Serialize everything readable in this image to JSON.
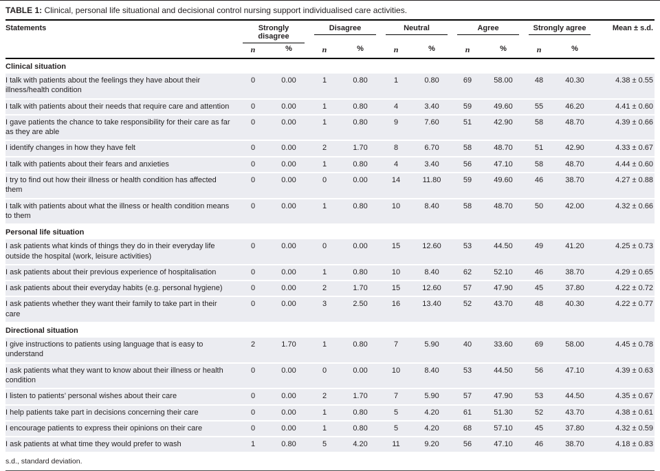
{
  "caption": {
    "label": "TABLE 1:",
    "text": " Clinical, personal life situational and decisional control nursing support individualised care activities."
  },
  "headers": {
    "statements": "Statements",
    "groups": [
      "Strongly disagree",
      "Disagree",
      "Neutral",
      "Agree",
      "Strongly agree"
    ],
    "sub_n": "n",
    "sub_pct": "%",
    "mean": "Mean ± s.d."
  },
  "sections": [
    {
      "title": "Clinical situation",
      "rows": [
        {
          "statement": "I talk with patients about the feelings they have about their illness/health condition",
          "cells": [
            "0",
            "0.00",
            "1",
            "0.80",
            "1",
            "0.80",
            "69",
            "58.00",
            "48",
            "40.30"
          ],
          "mean": "4.38 ± 0.55"
        },
        {
          "statement": "I talk with patients about their needs that require care and attention",
          "cells": [
            "0",
            "0.00",
            "1",
            "0.80",
            "4",
            "3.40",
            "59",
            "49.60",
            "55",
            "46.20"
          ],
          "mean": "4.41 ± 0.60"
        },
        {
          "statement": "I gave patients the chance to take responsibility for their care as far as they are able",
          "cells": [
            "0",
            "0.00",
            "1",
            "0.80",
            "9",
            "7.60",
            "51",
            "42.90",
            "58",
            "48.70"
          ],
          "mean": "4.39 ± 0.66"
        },
        {
          "statement": "I identify changes in how they have felt",
          "cells": [
            "0",
            "0.00",
            "2",
            "1.70",
            "8",
            "6.70",
            "58",
            "48.70",
            "51",
            "42.90"
          ],
          "mean": "4.33 ± 0.67"
        },
        {
          "statement": "I talk with patients about their fears and anxieties",
          "cells": [
            "0",
            "0.00",
            "1",
            "0.80",
            "4",
            "3.40",
            "56",
            "47.10",
            "58",
            "48.70"
          ],
          "mean": "4.44 ± 0.60"
        },
        {
          "statement": "I try to find out how their illness or health condition has affected them",
          "cells": [
            "0",
            "0.00",
            "0",
            "0.00",
            "14",
            "11.80",
            "59",
            "49.60",
            "46",
            "38.70"
          ],
          "mean": "4.27 ± 0.88"
        },
        {
          "statement": "I talk with patients about what the illness or health condition means to them",
          "cells": [
            "0",
            "0.00",
            "1",
            "0.80",
            "10",
            "8.40",
            "58",
            "48.70",
            "50",
            "42.00"
          ],
          "mean": "4.32 ± 0.66"
        }
      ]
    },
    {
      "title": "Personal life situation",
      "rows": [
        {
          "statement": "I ask patients what kinds of things they do in their everyday life outside the hospital (work, leisure activities)",
          "cells": [
            "0",
            "0.00",
            "0",
            "0.00",
            "15",
            "12.60",
            "53",
            "44.50",
            "49",
            "41.20"
          ],
          "mean": "4.25 ± 0.73"
        },
        {
          "statement": "I ask patients about their previous experience of hospitalisation",
          "cells": [
            "0",
            "0.00",
            "1",
            "0.80",
            "10",
            "8.40",
            "62",
            "52.10",
            "46",
            "38.70"
          ],
          "mean": "4.29 ± 0.65"
        },
        {
          "statement": "I ask patients about their everyday habits (e.g. personal hygiene)",
          "cells": [
            "0",
            "0.00",
            "2",
            "1.70",
            "15",
            "12.60",
            "57",
            "47.90",
            "45",
            "37.80"
          ],
          "mean": "4.22 ± 0.72"
        },
        {
          "statement": "I ask patients whether they want their family to take part in their care",
          "cells": [
            "0",
            "0.00",
            "3",
            "2.50",
            "16",
            "13.40",
            "52",
            "43.70",
            "48",
            "40.30"
          ],
          "mean": "4.22 ± 0.77"
        }
      ]
    },
    {
      "title": "Directional situation",
      "rows": [
        {
          "statement": "I give instructions to patients using language that is easy to understand",
          "cells": [
            "2",
            "1.70",
            "1",
            "0.80",
            "7",
            "5.90",
            "40",
            "33.60",
            "69",
            "58.00"
          ],
          "mean": "4.45 ± 0.78"
        },
        {
          "statement": "I ask patients what they want to know about their illness or health condition",
          "cells": [
            "0",
            "0.00",
            "0",
            "0.00",
            "10",
            "8.40",
            "53",
            "44.50",
            "56",
            "47.10"
          ],
          "mean": "4.39 ± 0.63"
        },
        {
          "statement": "I listen to patients’ personal wishes about their care",
          "cells": [
            "0",
            "0.00",
            "2",
            "1.70",
            "7",
            "5.90",
            "57",
            "47.90",
            "53",
            "44.50"
          ],
          "mean": "4.35 ± 0.67"
        },
        {
          "statement": "I help patients take part in decisions concerning their care",
          "cells": [
            "0",
            "0.00",
            "1",
            "0.80",
            "5",
            "4.20",
            "61",
            "51.30",
            "52",
            "43.70"
          ],
          "mean": "4.38 ± 0.61"
        },
        {
          "statement": "I encourage patients to express their opinions on their care",
          "cells": [
            "0",
            "0.00",
            "1",
            "0.80",
            "5",
            "4.20",
            "68",
            "57.10",
            "45",
            "37.80"
          ],
          "mean": "4.32 ± 0.59"
        },
        {
          "statement": "I ask patients at what time they would prefer to wash",
          "cells": [
            "1",
            "0.80",
            "5",
            "4.20",
            "11",
            "9.20",
            "56",
            "47.10",
            "46",
            "38.70"
          ],
          "mean": "4.18 ± 0.83"
        }
      ]
    }
  ],
  "footnote": "s.d., standard deviation.",
  "colors": {
    "row_background": "#ebecf1",
    "rule": "#000000",
    "text": "#231f20"
  }
}
